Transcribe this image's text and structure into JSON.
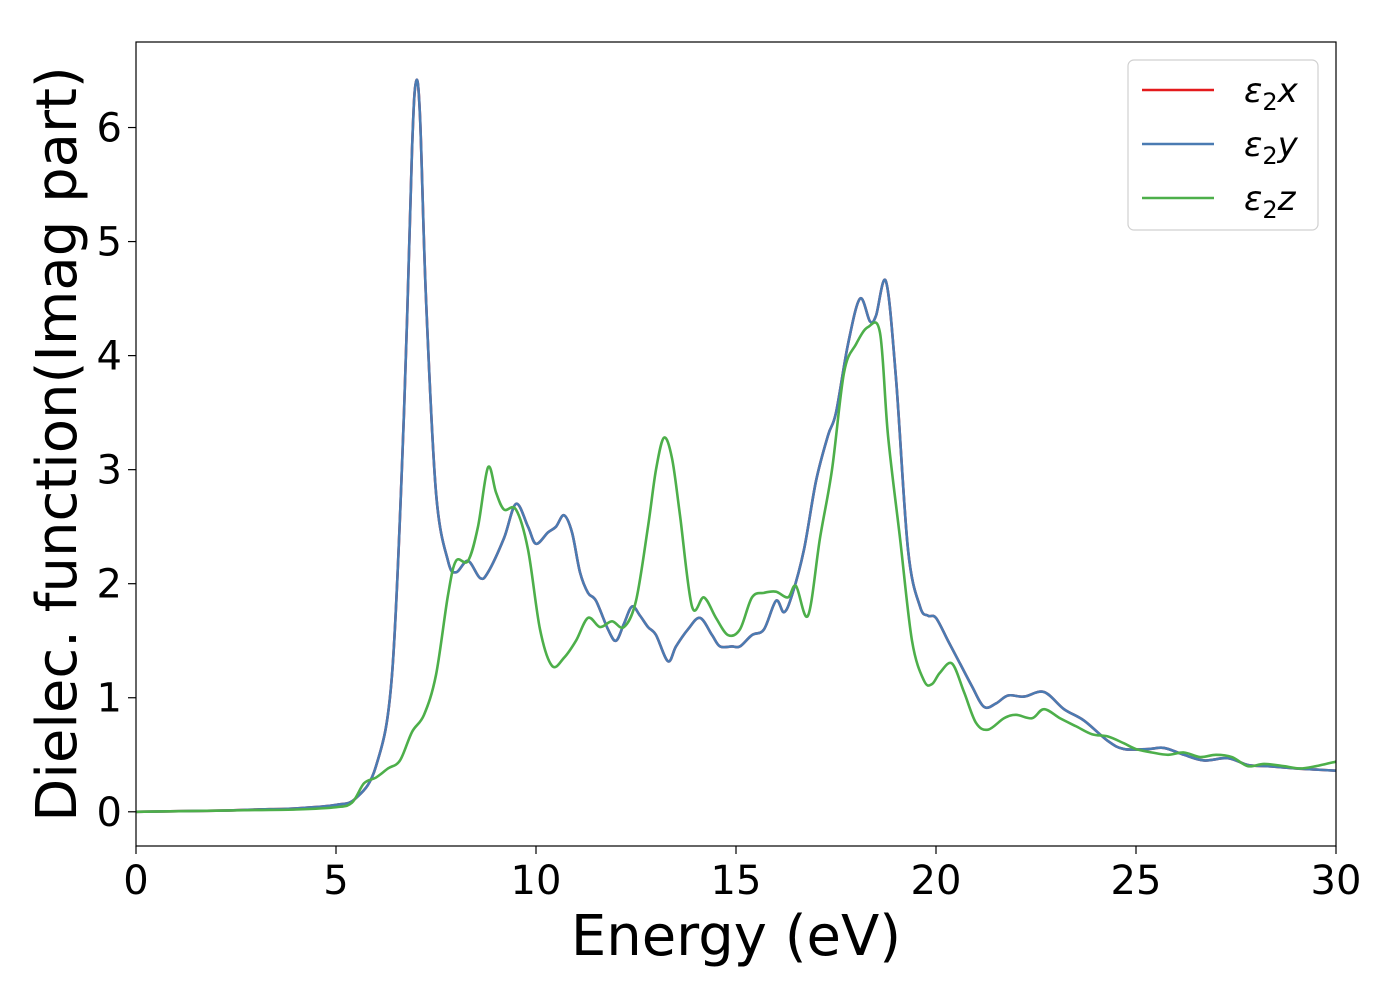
{
  "chart_data": {
    "type": "line",
    "xlabel": "Energy (eV)",
    "ylabel": "Dielec. function(Imag part)",
    "xlim": [
      0,
      30
    ],
    "ylim": [
      -0.3,
      6.75
    ],
    "xticks": [
      0,
      5,
      10,
      15,
      20,
      25,
      30
    ],
    "yticks": [
      0,
      1,
      2,
      3,
      4,
      5,
      6
    ],
    "grid": false,
    "legend_position": "top-right",
    "series": [
      {
        "name": "ε2x",
        "legend_base": "ε",
        "legend_sub": "2",
        "legend_suffix": "x",
        "color": "#e41a1c",
        "points": [
          [
            0,
            0.0
          ],
          [
            2,
            0.01
          ],
          [
            3,
            0.02
          ],
          [
            4,
            0.03
          ],
          [
            5,
            0.06
          ],
          [
            5.5,
            0.12
          ],
          [
            6,
            0.4
          ],
          [
            6.4,
            1.2
          ],
          [
            6.7,
            3.5
          ],
          [
            6.9,
            5.8
          ],
          [
            7.0,
            6.4
          ],
          [
            7.1,
            6.1
          ],
          [
            7.25,
            4.5
          ],
          [
            7.5,
            2.8
          ],
          [
            7.8,
            2.2
          ],
          [
            8.0,
            2.1
          ],
          [
            8.3,
            2.2
          ],
          [
            8.6,
            2.05
          ],
          [
            8.8,
            2.1
          ],
          [
            9.2,
            2.4
          ],
          [
            9.5,
            2.7
          ],
          [
            9.8,
            2.5
          ],
          [
            10.0,
            2.35
          ],
          [
            10.3,
            2.45
          ],
          [
            10.5,
            2.5
          ],
          [
            10.7,
            2.6
          ],
          [
            10.9,
            2.45
          ],
          [
            11.1,
            2.1
          ],
          [
            11.3,
            1.92
          ],
          [
            11.5,
            1.85
          ],
          [
            11.8,
            1.6
          ],
          [
            12.0,
            1.5
          ],
          [
            12.2,
            1.65
          ],
          [
            12.4,
            1.8
          ],
          [
            12.6,
            1.72
          ],
          [
            12.8,
            1.62
          ],
          [
            13.0,
            1.55
          ],
          [
            13.3,
            1.32
          ],
          [
            13.5,
            1.45
          ],
          [
            13.8,
            1.6
          ],
          [
            14.1,
            1.7
          ],
          [
            14.4,
            1.55
          ],
          [
            14.6,
            1.45
          ],
          [
            14.9,
            1.45
          ],
          [
            15.1,
            1.45
          ],
          [
            15.4,
            1.55
          ],
          [
            15.7,
            1.6
          ],
          [
            16.0,
            1.85
          ],
          [
            16.2,
            1.75
          ],
          [
            16.4,
            1.9
          ],
          [
            16.7,
            2.3
          ],
          [
            17.0,
            2.9
          ],
          [
            17.3,
            3.3
          ],
          [
            17.5,
            3.5
          ],
          [
            17.8,
            4.1
          ],
          [
            18.1,
            4.5
          ],
          [
            18.35,
            4.3
          ],
          [
            18.5,
            4.35
          ],
          [
            18.75,
            4.65
          ],
          [
            19.0,
            3.8
          ],
          [
            19.3,
            2.3
          ],
          [
            19.6,
            1.8
          ],
          [
            19.8,
            1.72
          ],
          [
            20.0,
            1.7
          ],
          [
            20.3,
            1.5
          ],
          [
            20.6,
            1.3
          ],
          [
            20.9,
            1.1
          ],
          [
            21.2,
            0.92
          ],
          [
            21.5,
            0.95
          ],
          [
            21.8,
            1.02
          ],
          [
            22.2,
            1.01
          ],
          [
            22.7,
            1.05
          ],
          [
            23.2,
            0.9
          ],
          [
            23.7,
            0.8
          ],
          [
            24.3,
            0.62
          ],
          [
            24.7,
            0.55
          ],
          [
            25.3,
            0.55
          ],
          [
            25.7,
            0.56
          ],
          [
            26.2,
            0.5
          ],
          [
            26.7,
            0.45
          ],
          [
            27.3,
            0.47
          ],
          [
            27.8,
            0.41
          ],
          [
            28.3,
            0.4
          ],
          [
            29.0,
            0.38
          ],
          [
            29.5,
            0.37
          ],
          [
            30,
            0.36
          ]
        ]
      },
      {
        "name": "ε2y",
        "legend_base": "ε",
        "legend_sub": "2",
        "legend_suffix": "y",
        "color": "#4a7bb2",
        "points": [
          [
            0,
            0.0
          ],
          [
            2,
            0.01
          ],
          [
            3,
            0.02
          ],
          [
            4,
            0.03
          ],
          [
            5,
            0.06
          ],
          [
            5.5,
            0.12
          ],
          [
            6,
            0.4
          ],
          [
            6.4,
            1.2
          ],
          [
            6.7,
            3.5
          ],
          [
            6.9,
            5.8
          ],
          [
            7.0,
            6.4
          ],
          [
            7.1,
            6.1
          ],
          [
            7.25,
            4.5
          ],
          [
            7.5,
            2.8
          ],
          [
            7.8,
            2.2
          ],
          [
            8.0,
            2.1
          ],
          [
            8.3,
            2.2
          ],
          [
            8.6,
            2.05
          ],
          [
            8.8,
            2.1
          ],
          [
            9.2,
            2.4
          ],
          [
            9.5,
            2.7
          ],
          [
            9.8,
            2.5
          ],
          [
            10.0,
            2.35
          ],
          [
            10.3,
            2.45
          ],
          [
            10.5,
            2.5
          ],
          [
            10.7,
            2.6
          ],
          [
            10.9,
            2.45
          ],
          [
            11.1,
            2.1
          ],
          [
            11.3,
            1.92
          ],
          [
            11.5,
            1.85
          ],
          [
            11.8,
            1.6
          ],
          [
            12.0,
            1.5
          ],
          [
            12.2,
            1.65
          ],
          [
            12.4,
            1.8
          ],
          [
            12.6,
            1.72
          ],
          [
            12.8,
            1.62
          ],
          [
            13.0,
            1.55
          ],
          [
            13.3,
            1.32
          ],
          [
            13.5,
            1.45
          ],
          [
            13.8,
            1.6
          ],
          [
            14.1,
            1.7
          ],
          [
            14.4,
            1.55
          ],
          [
            14.6,
            1.45
          ],
          [
            14.9,
            1.45
          ],
          [
            15.1,
            1.45
          ],
          [
            15.4,
            1.55
          ],
          [
            15.7,
            1.6
          ],
          [
            16.0,
            1.85
          ],
          [
            16.2,
            1.75
          ],
          [
            16.4,
            1.9
          ],
          [
            16.7,
            2.3
          ],
          [
            17.0,
            2.9
          ],
          [
            17.3,
            3.3
          ],
          [
            17.5,
            3.5
          ],
          [
            17.8,
            4.1
          ],
          [
            18.1,
            4.5
          ],
          [
            18.35,
            4.3
          ],
          [
            18.5,
            4.35
          ],
          [
            18.75,
            4.65
          ],
          [
            19.0,
            3.8
          ],
          [
            19.3,
            2.3
          ],
          [
            19.6,
            1.8
          ],
          [
            19.8,
            1.72
          ],
          [
            20.0,
            1.7
          ],
          [
            20.3,
            1.5
          ],
          [
            20.6,
            1.3
          ],
          [
            20.9,
            1.1
          ],
          [
            21.2,
            0.92
          ],
          [
            21.5,
            0.95
          ],
          [
            21.8,
            1.02
          ],
          [
            22.2,
            1.01
          ],
          [
            22.7,
            1.05
          ],
          [
            23.2,
            0.9
          ],
          [
            23.7,
            0.8
          ],
          [
            24.3,
            0.62
          ],
          [
            24.7,
            0.55
          ],
          [
            25.3,
            0.55
          ],
          [
            25.7,
            0.56
          ],
          [
            26.2,
            0.5
          ],
          [
            26.7,
            0.45
          ],
          [
            27.3,
            0.47
          ],
          [
            27.8,
            0.41
          ],
          [
            28.3,
            0.4
          ],
          [
            29.0,
            0.38
          ],
          [
            29.5,
            0.37
          ],
          [
            30,
            0.36
          ]
        ]
      },
      {
        "name": "ε2z",
        "legend_base": "ε",
        "legend_sub": "2",
        "legend_suffix": "z",
        "color": "#4daf4a",
        "points": [
          [
            0,
            0.0
          ],
          [
            2,
            0.01
          ],
          [
            3,
            0.015
          ],
          [
            4,
            0.02
          ],
          [
            5,
            0.04
          ],
          [
            5.4,
            0.08
          ],
          [
            5.7,
            0.25
          ],
          [
            6.0,
            0.3
          ],
          [
            6.3,
            0.38
          ],
          [
            6.6,
            0.45
          ],
          [
            6.9,
            0.7
          ],
          [
            7.2,
            0.85
          ],
          [
            7.5,
            1.2
          ],
          [
            7.8,
            1.9
          ],
          [
            8.0,
            2.2
          ],
          [
            8.3,
            2.2
          ],
          [
            8.55,
            2.5
          ],
          [
            8.8,
            3.02
          ],
          [
            9.0,
            2.8
          ],
          [
            9.2,
            2.65
          ],
          [
            9.5,
            2.65
          ],
          [
            9.8,
            2.3
          ],
          [
            10.1,
            1.6
          ],
          [
            10.4,
            1.28
          ],
          [
            10.7,
            1.35
          ],
          [
            11.0,
            1.5
          ],
          [
            11.3,
            1.7
          ],
          [
            11.6,
            1.62
          ],
          [
            11.9,
            1.67
          ],
          [
            12.2,
            1.62
          ],
          [
            12.5,
            1.85
          ],
          [
            12.8,
            2.5
          ],
          [
            13.0,
            3.0
          ],
          [
            13.2,
            3.28
          ],
          [
            13.4,
            3.1
          ],
          [
            13.6,
            2.6
          ],
          [
            13.9,
            1.8
          ],
          [
            14.2,
            1.88
          ],
          [
            14.5,
            1.7
          ],
          [
            14.8,
            1.55
          ],
          [
            15.1,
            1.6
          ],
          [
            15.4,
            1.88
          ],
          [
            15.7,
            1.92
          ],
          [
            16.0,
            1.93
          ],
          [
            16.3,
            1.88
          ],
          [
            16.5,
            1.98
          ],
          [
            16.8,
            1.72
          ],
          [
            17.1,
            2.4
          ],
          [
            17.4,
            3.0
          ],
          [
            17.7,
            3.85
          ],
          [
            18.0,
            4.1
          ],
          [
            18.3,
            4.25
          ],
          [
            18.6,
            4.2
          ],
          [
            18.8,
            3.3
          ],
          [
            19.1,
            2.4
          ],
          [
            19.4,
            1.5
          ],
          [
            19.7,
            1.15
          ],
          [
            19.9,
            1.12
          ],
          [
            20.1,
            1.22
          ],
          [
            20.4,
            1.3
          ],
          [
            20.7,
            1.05
          ],
          [
            21.0,
            0.78
          ],
          [
            21.3,
            0.72
          ],
          [
            21.7,
            0.82
          ],
          [
            22.0,
            0.85
          ],
          [
            22.4,
            0.82
          ],
          [
            22.7,
            0.9
          ],
          [
            23.1,
            0.82
          ],
          [
            23.5,
            0.75
          ],
          [
            23.9,
            0.68
          ],
          [
            24.3,
            0.66
          ],
          [
            24.7,
            0.6
          ],
          [
            25.0,
            0.55
          ],
          [
            25.4,
            0.52
          ],
          [
            25.8,
            0.5
          ],
          [
            26.2,
            0.52
          ],
          [
            26.6,
            0.48
          ],
          [
            27.0,
            0.5
          ],
          [
            27.4,
            0.48
          ],
          [
            27.8,
            0.4
          ],
          [
            28.2,
            0.42
          ],
          [
            28.7,
            0.4
          ],
          [
            29.1,
            0.38
          ],
          [
            29.5,
            0.4
          ],
          [
            30,
            0.44
          ]
        ]
      }
    ]
  }
}
